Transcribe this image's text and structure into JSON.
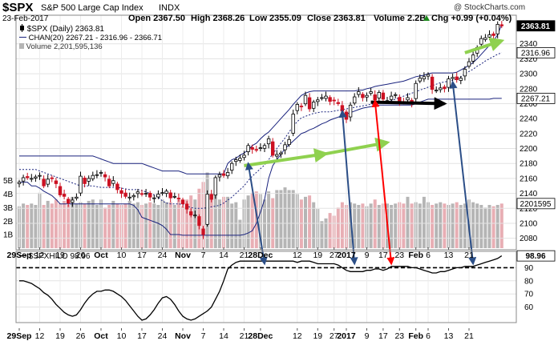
{
  "header": {
    "symbol": "$SPX",
    "name": "S&P 500 Large Cap Index",
    "exchange": "INDX",
    "source": "@ StockCharts.com",
    "date": "23-Feb-2017",
    "open": "Open 2367.50",
    "high": "High 2368.26",
    "low": "Low 2355.09",
    "close": "Close 2363.81",
    "volume": "Volume 2.2B",
    "change": "Chg +0.99 (+0.04%)",
    "change_arrow": "up-triangle-icon"
  },
  "price_legend": [
    "$SPX (Daily) 2363.81",
    "CHAN(20) 2267.21 - 2316.96 - 2366.71",
    "Volume 2,201,595,136"
  ],
  "hilo_legend": "$SPXHILO 98.96",
  "colors": {
    "up": "#000000",
    "down": "#cc1122",
    "channel": "#1a237e",
    "volume_up": "#b5b5b5",
    "volume_down": "#e8aeb4",
    "arrow_green": "#8fd14f",
    "arrow_red": "#ff0000",
    "arrow_blue": "#2b4e87",
    "arrow_black": "#000000"
  },
  "chart_data": [
    {
      "type": "candlestick",
      "panel": "price",
      "x_tick_labels": [
        "29Sep",
        "12",
        "19",
        "26",
        "Oct",
        "10",
        "17",
        "24",
        "Nov",
        "7",
        "14",
        "21",
        "28Dec",
        "12",
        "19",
        "27",
        "2017",
        "9",
        "17",
        "23",
        "Feb",
        "6",
        "13",
        "21"
      ],
      "x_tick_indices": [
        0,
        5,
        10,
        15,
        20,
        25,
        30,
        35,
        40,
        45,
        50,
        55,
        59,
        68,
        73,
        77,
        80,
        85,
        89,
        93,
        97,
        100,
        105,
        110
      ],
      "bold_tick_labels": [
        "29Sep",
        "Oct",
        "Nov",
        "28Dec",
        "2017",
        "Feb"
      ],
      "y_ticks": [
        2080,
        2100,
        2120,
        2140,
        2160,
        2180,
        2200,
        2220,
        2240,
        2260,
        2280,
        2300,
        2320,
        2340
      ],
      "ylim": [
        2070,
        2375
      ],
      "last_value_labels": [
        "2363.81",
        "2316.96",
        "2267.21",
        "2201595"
      ],
      "volume_axis_labels": [
        "5B",
        "4B",
        "3B",
        "2B",
        "1B"
      ],
      "volume_max": 6.4,
      "closes": [
        2155,
        2161,
        2161,
        2160,
        2162,
        2164,
        2150,
        2159,
        2160,
        2153,
        2138,
        2136,
        2127,
        2131,
        2135,
        2163,
        2153,
        2160,
        2164,
        2165,
        2168,
        2162,
        2150,
        2157,
        2145,
        2140,
        2136,
        2135,
        2137,
        2142,
        2139,
        2140,
        2135,
        2134,
        2139,
        2141,
        2143,
        2134,
        2136,
        2133,
        2126,
        2119,
        2111,
        2111,
        2097,
        2085,
        2139,
        2132,
        2161,
        2165,
        2164,
        2168,
        2180,
        2185,
        2187,
        2191,
        2204,
        2199,
        2198,
        2201,
        2204,
        2213,
        2191,
        2192,
        2194,
        2205,
        2212,
        2246,
        2259,
        2256,
        2271,
        2253,
        2262,
        2265,
        2268,
        2270,
        2263,
        2264,
        2260,
        2250,
        2239,
        2258,
        2269,
        2276,
        2268,
        2271,
        2276,
        2265,
        2275,
        2266,
        2264,
        2270,
        2272,
        2263,
        2262,
        2268,
        2260,
        2287,
        2294,
        2296,
        2299,
        2279,
        2278,
        2281,
        2280,
        2293,
        2295,
        2292,
        2294,
        2306,
        2316,
        2325,
        2335,
        2347,
        2348,
        2352,
        2351,
        2366,
        2364
      ],
      "channel": {
        "name": "CHAN(20)",
        "upper": [
          2190,
          2190,
          2190,
          2190,
          2190,
          2190,
          2190,
          2190,
          2190,
          2190,
          2190,
          2190,
          2190,
          2190,
          2190,
          2190,
          2190,
          2190,
          2190,
          2188,
          2186,
          2184,
          2182,
          2180,
          2180,
          2180,
          2180,
          2180,
          2180,
          2180,
          2180,
          2178,
          2176,
          2174,
          2172,
          2170,
          2170,
          2170,
          2170,
          2170,
          2168,
          2166,
          2166,
          2166,
          2166,
          2166,
          2166,
          2166,
          2166,
          2166,
          2166,
          2180,
          2185,
          2187,
          2191,
          2194,
          2198,
          2204,
          2207,
          2213,
          2218,
          2222,
          2228,
          2234,
          2240,
          2246,
          2252,
          2259,
          2265,
          2271,
          2274,
          2276,
          2277,
          2277,
          2277,
          2277,
          2277,
          2277,
          2277,
          2277,
          2277,
          2277,
          2277,
          2278,
          2278,
          2280,
          2281,
          2283,
          2284,
          2285,
          2286,
          2287,
          2288,
          2289,
          2290,
          2292,
          2294,
          2296,
          2297,
          2298,
          2300,
          2301,
          2301,
          2301,
          2301,
          2301,
          2301,
          2302,
          2305,
          2308,
          2311,
          2315,
          2320,
          2326,
          2332,
          2338,
          2344,
          2352,
          2366
        ],
        "middle": [
          2172,
          2172,
          2172,
          2172,
          2172,
          2170,
          2168,
          2166,
          2164,
          2162,
          2160,
          2158,
          2156,
          2154,
          2152,
          2150,
          2150,
          2150,
          2150,
          2149,
          2148,
          2148,
          2148,
          2148,
          2148,
          2147,
          2146,
          2145,
          2145,
          2145,
          2144,
          2142,
          2140,
          2138,
          2135,
          2130,
          2127,
          2126,
          2126,
          2126,
          2125,
          2123,
          2121,
          2120,
          2120,
          2120,
          2121,
          2122,
          2123,
          2124,
          2127,
          2131,
          2135,
          2140,
          2145,
          2150,
          2157,
          2163,
          2168,
          2173,
          2178,
          2185,
          2193,
          2200,
          2207,
          2214,
          2222,
          2230,
          2236,
          2241,
          2243,
          2245,
          2247,
          2248,
          2249,
          2249,
          2249,
          2250,
          2251,
          2252,
          2253,
          2254,
          2255,
          2256,
          2257,
          2258,
          2259,
          2260,
          2261,
          2262,
          2263,
          2264,
          2266,
          2268,
          2270,
          2272,
          2274,
          2276,
          2278,
          2280,
          2282,
          2284,
          2286,
          2288,
          2289,
          2290,
          2291,
          2293,
          2296,
          2300,
          2303,
          2306,
          2310,
          2313,
          2317,
          2320,
          2323,
          2326,
          2328
        ],
        "lower": [
          2155,
          2155,
          2155,
          2150,
          2150,
          2147,
          2143,
          2140,
          2137,
          2132,
          2126,
          2126,
          2126,
          2126,
          2126,
          2126,
          2126,
          2126,
          2126,
          2126,
          2126,
          2126,
          2126,
          2126,
          2126,
          2126,
          2126,
          2126,
          2124,
          2118,
          2108,
          2106,
          2104,
          2102,
          2100,
          2097,
          2092,
          2085,
          2085,
          2085,
          2084,
          2084,
          2084,
          2084,
          2084,
          2084,
          2084,
          2084,
          2084,
          2084,
          2084,
          2084,
          2084,
          2084,
          2084,
          2085,
          2087,
          2090,
          2100,
          2115,
          2132,
          2160,
          2177,
          2185,
          2192,
          2200,
          2205,
          2210,
          2215,
          2220,
          2222,
          2225,
          2227,
          2230,
          2233,
          2235,
          2238,
          2240,
          2242,
          2244,
          2246,
          2248,
          2250,
          2252,
          2254,
          2255,
          2256,
          2257,
          2258,
          2258,
          2258,
          2258,
          2258,
          2258,
          2258,
          2258,
          2258,
          2260,
          2262,
          2264,
          2266,
          2266,
          2266,
          2266,
          2266,
          2266,
          2266,
          2266,
          2266,
          2266,
          2266,
          2266,
          2266,
          2266,
          2266,
          2266,
          2267,
          2267,
          2267
        ]
      },
      "volume_billions": [
        3.1,
        3.3,
        3.2,
        3.3,
        3.2,
        4.1,
        3.2,
        3.5,
        3.3,
        3.6,
        3.3,
        3.5,
        3.2,
        3.8,
        3.3,
        3.4,
        3.3,
        3.5,
        3.6,
        3.2,
        3.6,
        3.0,
        3.2,
        3.5,
        3.3,
        3.2,
        3.3,
        3.5,
        3.3,
        3.4,
        3.2,
        3.3,
        3.4,
        3.3,
        3.2,
        3.6,
        3.4,
        3.4,
        3.2,
        3.6,
        3.1,
        3.6,
        3.9,
        3.6,
        4.4,
        4.9,
        5.6,
        4.0,
        4.3,
        3.6,
        3.8,
        3.8,
        3.3,
        3.4,
        2.1,
        3.6,
        3.9,
        4.1,
        4.2,
        4.0,
        3.6,
        4.2,
        3.7,
        4.3,
        4.3,
        4.5,
        4.3,
        4.3,
        4.0,
        3.6,
        3.8,
        3.9,
        3.4,
        2.9,
        2.0,
        2.2,
        2.6,
        2.4,
        3.0,
        3.4,
        3.2,
        3.4,
        3.3,
        3.2,
        3.3,
        3.1,
        3.3,
        3.6,
        3.2,
        3.3,
        3.3,
        3.2,
        3.3,
        3.4,
        3.3,
        3.8,
        3.3,
        3.4,
        3.3,
        3.8,
        3.4,
        3.2,
        3.3,
        3.4,
        3.3,
        3.2,
        3.3,
        3.4,
        3.2,
        3.3,
        3.6,
        3.4,
        3.3,
        3.2,
        3.0,
        3.2,
        3.1,
        3.2,
        3.3
      ]
    },
    {
      "type": "line",
      "panel": "indicator",
      "series": [
        {
          "name": "$SPXHILO",
          "values": [
            80,
            80,
            79,
            78,
            76,
            74,
            71,
            69,
            66,
            62,
            59,
            56,
            54,
            53,
            54,
            58,
            63,
            67,
            70,
            72,
            72,
            73,
            73,
            72,
            70,
            68,
            65,
            61,
            57,
            53,
            50,
            51,
            54,
            58,
            63,
            67,
            68,
            66,
            62,
            57,
            53,
            51,
            50,
            51,
            53,
            55,
            57,
            60,
            66,
            72,
            80,
            89,
            92,
            94,
            95,
            95,
            95,
            95,
            95,
            95,
            95,
            95,
            95,
            95,
            95,
            95,
            95,
            95,
            94,
            95,
            95,
            95,
            94,
            93,
            93,
            93,
            93,
            93,
            92,
            90,
            88,
            87,
            87,
            87,
            87,
            88,
            88,
            89,
            89,
            88,
            89,
            91,
            91,
            91,
            91,
            91,
            90,
            90,
            89,
            88,
            87,
            86,
            86,
            87,
            87,
            88,
            89,
            90,
            90,
            91,
            91,
            91,
            92,
            93,
            94,
            95,
            96,
            97,
            99
          ]
        }
      ],
      "y_ticks": [
        60,
        70,
        80,
        90
      ],
      "ylim": [
        50,
        100
      ],
      "reference_level": 90,
      "last_value_label": "98.96"
    }
  ],
  "annotations": {
    "green_arrows": [
      [
        55,
        2177,
        75,
        2193
      ],
      [
        75,
        2193,
        90,
        2208
      ],
      [
        109,
        2328,
        118,
        2344
      ]
    ],
    "black_arrow": [
      86,
      2262,
      104,
      2260
    ],
    "blue_arrows": [
      [
        56,
        2180,
        60,
        93
      ],
      [
        79,
        2250,
        82,
        93
      ],
      [
        106,
        2289,
        111,
        93
      ]
    ],
    "red_arrow": [
      87,
      2264,
      91,
      93
    ]
  }
}
